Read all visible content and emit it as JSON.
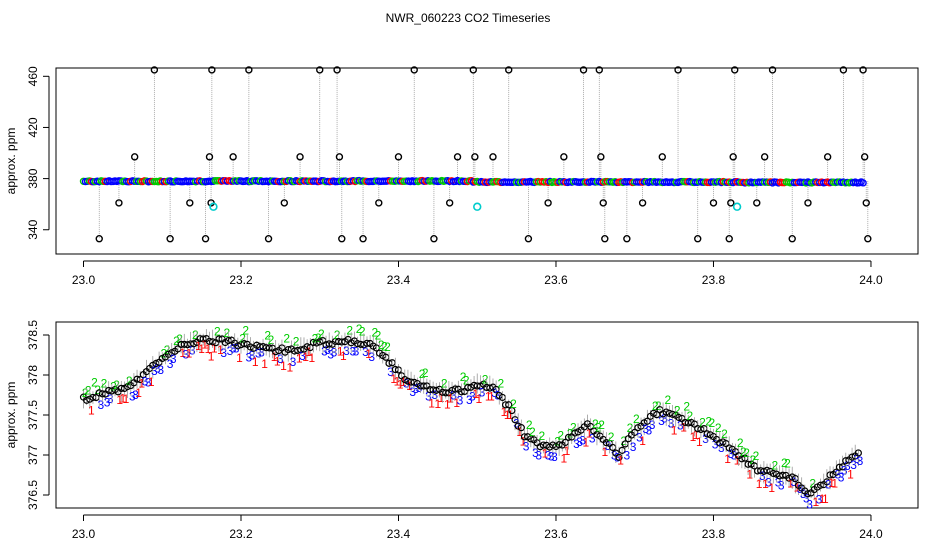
{
  "page": {
    "title": "NWR_060223  CO2 Timeseries"
  },
  "chart_data": [
    {
      "type": "scatter",
      "ylabel": "approx. ppm",
      "xlim": [
        22.99,
        24.04
      ],
      "ylim": [
        330,
        468
      ],
      "x_ticks": [
        23.0,
        23.2,
        23.4,
        23.6,
        23.8,
        24.0
      ],
      "x_tick_labels": [
        "23.0",
        "23.2",
        "23.4",
        "23.6",
        "23.8",
        "24.0"
      ],
      "y_ticks": [
        340,
        380,
        420,
        460
      ],
      "y_tick_labels": [
        "340",
        "380",
        "420",
        "460"
      ],
      "baseline_segments": [
        {
          "x_start": 23.0,
          "x_end": 23.165,
          "y": 377.9
        },
        {
          "x_start": 23.165,
          "x_end": 23.33,
          "y": 378.0
        },
        {
          "x_start": 23.33,
          "x_end": 23.495,
          "y": 378.1
        },
        {
          "x_start": 23.495,
          "x_end": 23.665,
          "y": 377.4
        },
        {
          "x_start": 23.665,
          "x_end": 23.83,
          "y": 377.3
        },
        {
          "x_start": 23.83,
          "x_end": 23.99,
          "y": 377.0
        }
      ],
      "spikes": [
        {
          "x": 23.02,
          "y": 333
        },
        {
          "x": 23.045,
          "y": 361
        },
        {
          "x": 23.065,
          "y": 397
        },
        {
          "x": 23.09,
          "y": 465
        },
        {
          "x": 23.11,
          "y": 333
        },
        {
          "x": 23.135,
          "y": 361
        },
        {
          "x": 23.155,
          "y": 333
        },
        {
          "x": 23.16,
          "y": 397
        },
        {
          "x": 23.162,
          "y": 361
        },
        {
          "x": 23.163,
          "y": 465
        },
        {
          "x": 23.19,
          "y": 397
        },
        {
          "x": 23.21,
          "y": 465
        },
        {
          "x": 23.235,
          "y": 333
        },
        {
          "x": 23.255,
          "y": 361
        },
        {
          "x": 23.275,
          "y": 397
        },
        {
          "x": 23.3,
          "y": 465
        },
        {
          "x": 23.322,
          "y": 465
        },
        {
          "x": 23.325,
          "y": 397
        },
        {
          "x": 23.328,
          "y": 333
        },
        {
          "x": 23.355,
          "y": 333
        },
        {
          "x": 23.375,
          "y": 361
        },
        {
          "x": 23.4,
          "y": 397
        },
        {
          "x": 23.42,
          "y": 465
        },
        {
          "x": 23.445,
          "y": 333
        },
        {
          "x": 23.465,
          "y": 361
        },
        {
          "x": 23.475,
          "y": 397
        },
        {
          "x": 23.495,
          "y": 465
        },
        {
          "x": 23.497,
          "y": 397
        },
        {
          "x": 23.52,
          "y": 397
        },
        {
          "x": 23.54,
          "y": 465
        },
        {
          "x": 23.565,
          "y": 333
        },
        {
          "x": 23.59,
          "y": 361
        },
        {
          "x": 23.61,
          "y": 397
        },
        {
          "x": 23.635,
          "y": 465
        },
        {
          "x": 23.655,
          "y": 465
        },
        {
          "x": 23.657,
          "y": 397
        },
        {
          "x": 23.66,
          "y": 361
        },
        {
          "x": 23.662,
          "y": 333
        },
        {
          "x": 23.69,
          "y": 333
        },
        {
          "x": 23.71,
          "y": 361
        },
        {
          "x": 23.735,
          "y": 397
        },
        {
          "x": 23.755,
          "y": 465
        },
        {
          "x": 23.78,
          "y": 333
        },
        {
          "x": 23.8,
          "y": 361
        },
        {
          "x": 23.82,
          "y": 333
        },
        {
          "x": 23.822,
          "y": 361
        },
        {
          "x": 23.825,
          "y": 397
        },
        {
          "x": 23.827,
          "y": 465
        },
        {
          "x": 23.855,
          "y": 361
        },
        {
          "x": 23.865,
          "y": 397
        },
        {
          "x": 23.875,
          "y": 465
        },
        {
          "x": 23.9,
          "y": 333
        },
        {
          "x": 23.92,
          "y": 361
        },
        {
          "x": 23.945,
          "y": 397
        },
        {
          "x": 23.965,
          "y": 465
        },
        {
          "x": 23.99,
          "y": 465
        },
        {
          "x": 23.992,
          "y": 397
        },
        {
          "x": 23.994,
          "y": 361
        },
        {
          "x": 23.996,
          "y": 333
        }
      ],
      "cyan_points": [
        {
          "x": 23.165,
          "y": 358
        },
        {
          "x": 23.5,
          "y": 358
        },
        {
          "x": 23.83,
          "y": 358
        }
      ],
      "colors": {
        "black": "#000000",
        "blue": "#0000ff",
        "green": "#00cc00",
        "red": "#ff0000",
        "cyan": "#00cccc",
        "gray": "#999999"
      }
    },
    {
      "type": "scatter",
      "ylabel": "approx. ppm",
      "xlim": [
        22.99,
        24.04
      ],
      "ylim": [
        376.25,
        378.65
      ],
      "x_ticks": [
        23.0,
        23.2,
        23.4,
        23.6,
        23.8,
        24.0
      ],
      "x_tick_labels": [
        "23.0",
        "23.2",
        "23.4",
        "23.6",
        "23.8",
        "24.0"
      ],
      "y_ticks": [
        376.5,
        377.0,
        377.5,
        378.0,
        378.5
      ],
      "y_tick_labels": [
        "376.5",
        "377",
        "377.5",
        "378",
        "378.5"
      ],
      "markers": {
        "series_1": "1",
        "series_2": "2",
        "series_3": "3"
      },
      "curve": [
        [
          23.0,
          377.7
        ],
        [
          23.03,
          377.78
        ],
        [
          23.06,
          377.85
        ],
        [
          23.08,
          378.05
        ],
        [
          23.1,
          378.2
        ],
        [
          23.12,
          378.35
        ],
        [
          23.15,
          378.45
        ],
        [
          23.18,
          378.42
        ],
        [
          23.22,
          378.35
        ],
        [
          23.26,
          378.3
        ],
        [
          23.3,
          378.4
        ],
        [
          23.34,
          378.42
        ],
        [
          23.37,
          378.35
        ],
        [
          23.39,
          378.15
        ],
        [
          23.41,
          377.95
        ],
        [
          23.44,
          377.82
        ],
        [
          23.47,
          377.8
        ],
        [
          23.49,
          377.83
        ],
        [
          23.5,
          377.88
        ],
        [
          23.52,
          377.85
        ],
        [
          23.54,
          377.6
        ],
        [
          23.56,
          377.25
        ],
        [
          23.58,
          377.1
        ],
        [
          23.6,
          377.1
        ],
        [
          23.62,
          377.22
        ],
        [
          23.64,
          377.38
        ],
        [
          23.66,
          377.2
        ],
        [
          23.68,
          377.0
        ],
        [
          23.7,
          377.3
        ],
        [
          23.73,
          377.55
        ],
        [
          23.76,
          377.45
        ],
        [
          23.79,
          377.3
        ],
        [
          23.82,
          377.1
        ],
        [
          23.85,
          376.85
        ],
        [
          23.88,
          376.75
        ],
        [
          23.9,
          376.72
        ],
        [
          23.92,
          376.5
        ],
        [
          23.94,
          376.65
        ],
        [
          23.96,
          376.85
        ],
        [
          23.98,
          377.0
        ]
      ],
      "colors": {
        "black": "#000000",
        "blue": "#0000ff",
        "green": "#00cc00",
        "red": "#ff0000",
        "gray": "#999999"
      }
    }
  ]
}
